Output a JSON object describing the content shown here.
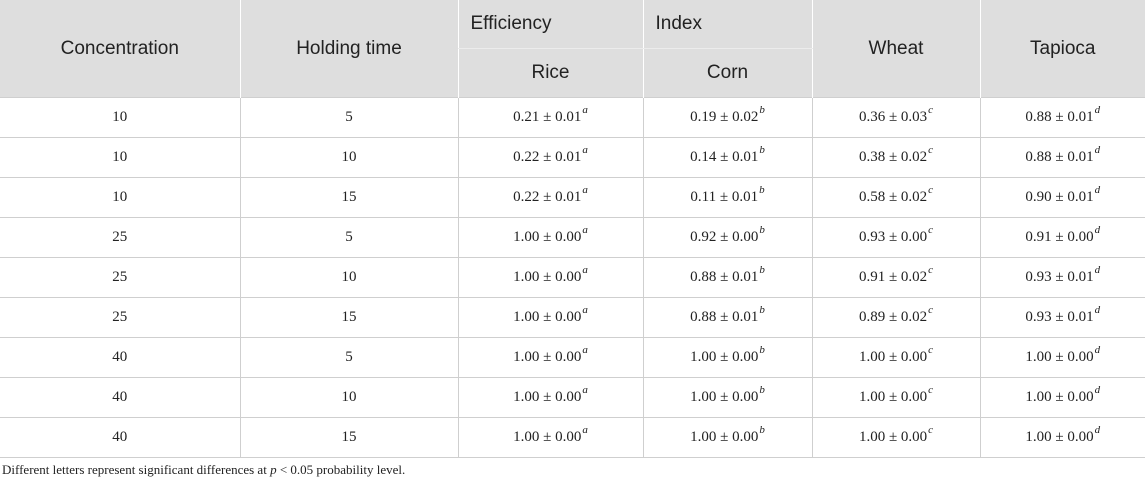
{
  "table": {
    "group_labels": {
      "efficiency": "Efficiency",
      "index": "Index"
    },
    "columns": {
      "concentration": "Concentration",
      "holding_time": "Holding time",
      "rice": "Rice",
      "corn": "Corn",
      "wheat": "Wheat",
      "tapioca": "Tapioca"
    },
    "pm": "±",
    "letters": {
      "rice": "a",
      "corn": "b",
      "wheat": "c",
      "tapioca": "d"
    },
    "rows": [
      {
        "concentration": "10",
        "holding_time": "5",
        "rice": "0.21 ± 0.01",
        "corn": "0.19 ± 0.02",
        "wheat": "0.36 ± 0.03",
        "tapioca": "0.88 ± 0.01"
      },
      {
        "concentration": "10",
        "holding_time": "10",
        "rice": "0.22 ± 0.01",
        "corn": "0.14 ± 0.01",
        "wheat": "0.38 ± 0.02",
        "tapioca": "0.88 ± 0.01"
      },
      {
        "concentration": "10",
        "holding_time": "15",
        "rice": "0.22 ± 0.01",
        "corn": "0.11 ± 0.01",
        "wheat": "0.58 ± 0.02",
        "tapioca": "0.90 ± 0.01"
      },
      {
        "concentration": "25",
        "holding_time": "5",
        "rice": "1.00 ± 0.00",
        "corn": "0.92 ± 0.00",
        "wheat": "0.93 ± 0.00",
        "tapioca": "0.91 ± 0.00"
      },
      {
        "concentration": "25",
        "holding_time": "10",
        "rice": "1.00 ± 0.00",
        "corn": "0.88 ± 0.01",
        "wheat": "0.91 ± 0.02",
        "tapioca": "0.93 ± 0.01"
      },
      {
        "concentration": "25",
        "holding_time": "15",
        "rice": "1.00 ± 0.00",
        "corn": "0.88 ± 0.01",
        "wheat": "0.89 ± 0.02",
        "tapioca": "0.93 ± 0.01"
      },
      {
        "concentration": "40",
        "holding_time": "5",
        "rice": "1.00 ± 0.00",
        "corn": "1.00 ± 0.00",
        "wheat": "1.00 ± 0.00",
        "tapioca": "1.00 ± 0.00"
      },
      {
        "concentration": "40",
        "holding_time": "10",
        "rice": "1.00 ± 0.00",
        "corn": "1.00 ± 0.00",
        "wheat": "1.00 ± 0.00",
        "tapioca": "1.00 ± 0.00"
      },
      {
        "concentration": "40",
        "holding_time": "15",
        "rice": "1.00 ± 0.00",
        "corn": "1.00 ± 0.00",
        "wheat": "1.00 ± 0.00",
        "tapioca": "1.00 ± 0.00"
      }
    ]
  },
  "footnote": {
    "before": "Different letters represent significant differences at ",
    "var": "p",
    "after": " < 0.05 probability level."
  }
}
